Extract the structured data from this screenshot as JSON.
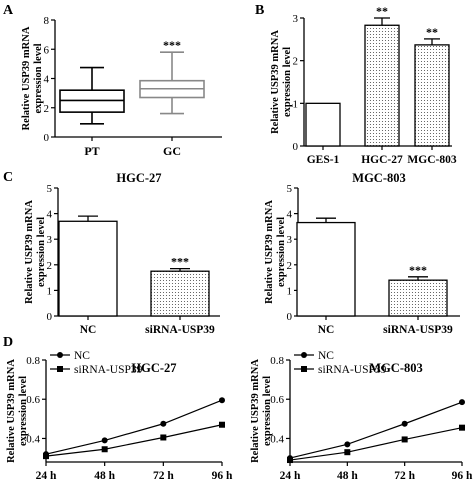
{
  "figure": {
    "panels": {
      "A": "A",
      "B": "B",
      "C": "C",
      "D": "D"
    },
    "ylabel_line1": "Relative USP39 mRNA",
    "ylabel_line2": "expression level"
  },
  "colors": {
    "ink": "#000000",
    "gc_box": "#888888",
    "bg": "#ffffff"
  },
  "chart_data": [
    {
      "id": "A",
      "type": "boxplot",
      "categories": [
        "PT",
        "GC"
      ],
      "boxes": [
        {
          "whisker_low": 0.9,
          "q1": 1.7,
          "median": 2.5,
          "q3": 3.2,
          "whisker_high": 4.75
        },
        {
          "whisker_low": 1.6,
          "q1": 2.7,
          "median": 3.3,
          "q3": 3.85,
          "whisker_high": 5.8
        }
      ],
      "annotations": [
        "",
        "***"
      ],
      "ylabel": "Relative USP39 mRNA expression level",
      "ylim": [
        0,
        8
      ],
      "yticks": [
        0,
        2,
        4,
        6,
        8
      ]
    },
    {
      "id": "B",
      "type": "bar",
      "categories": [
        "GES-1",
        "HGC-27",
        "MGC-803"
      ],
      "values": [
        1.0,
        2.83,
        2.37
      ],
      "errors": [
        0,
        0.17,
        0.14
      ],
      "annotations": [
        "",
        "**",
        "**"
      ],
      "fills": [
        "plain",
        "dots",
        "dots"
      ],
      "ylabel": "Relative USP39 mRNA expression level",
      "ylim": [
        0,
        3
      ],
      "yticks": [
        0,
        1,
        2,
        3
      ]
    },
    {
      "id": "C1",
      "type": "bar",
      "title": "HGC-27",
      "categories": [
        "NC",
        "siRNA-USP39"
      ],
      "values": [
        3.7,
        1.75
      ],
      "errors": [
        0.2,
        0.1
      ],
      "annotations": [
        "",
        "***"
      ],
      "fills": [
        "plain",
        "dots"
      ],
      "ylabel": "Relative USP39 mRNA expression level",
      "ylim": [
        0,
        5
      ],
      "yticks": [
        0,
        1,
        2,
        3,
        4,
        5
      ]
    },
    {
      "id": "C2",
      "type": "bar",
      "title": "MGC-803",
      "categories": [
        "NC",
        "siRNA-USP39"
      ],
      "values": [
        3.65,
        1.4
      ],
      "errors": [
        0.17,
        0.13
      ],
      "annotations": [
        "",
        "***"
      ],
      "fills": [
        "plain",
        "dots"
      ],
      "ylabel": "Relative USP39 mRNA expression level",
      "ylim": [
        0,
        5
      ],
      "yticks": [
        0,
        1,
        2,
        3,
        4,
        5
      ]
    },
    {
      "id": "D1",
      "type": "line",
      "title": "HGC-27",
      "x": [
        "24 h",
        "48 h",
        "72 h",
        "96 h"
      ],
      "series": [
        {
          "name": "NC",
          "marker": "circle",
          "values": [
            0.32,
            0.39,
            0.475,
            0.595
          ]
        },
        {
          "name": "siRNA-USP39",
          "marker": "square",
          "values": [
            0.31,
            0.345,
            0.405,
            0.47
          ]
        }
      ],
      "legend": "top-left",
      "ylabel": "Relative USP39 mRNA expression level",
      "ylim": [
        0.28,
        0.8
      ],
      "yticks": [
        0.4,
        0.6,
        0.8
      ]
    },
    {
      "id": "D2",
      "type": "line",
      "title": "MGC-803",
      "x": [
        "24 h",
        "48 h",
        "72 h",
        "96 h"
      ],
      "series": [
        {
          "name": "NC",
          "marker": "circle",
          "values": [
            0.3,
            0.37,
            0.475,
            0.585
          ]
        },
        {
          "name": "siRNA-USP39",
          "marker": "square",
          "values": [
            0.29,
            0.33,
            0.395,
            0.455
          ]
        }
      ],
      "legend": "top-left",
      "ylabel": "Relative USP39 mRNA expression level",
      "ylim": [
        0.28,
        0.8
      ],
      "yticks": [
        0.4,
        0.6,
        0.8
      ]
    }
  ]
}
